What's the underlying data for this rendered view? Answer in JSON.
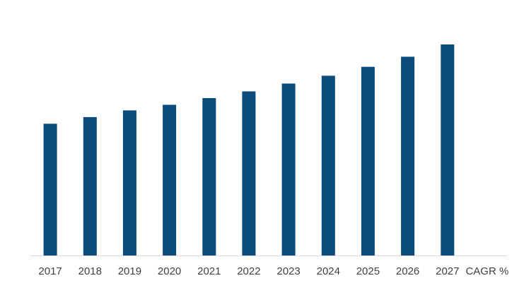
{
  "chart_data": {
    "type": "bar",
    "categories": [
      "2017",
      "2018",
      "2019",
      "2020",
      "2021",
      "2022",
      "2023",
      "2024",
      "2025",
      "2026",
      "2027",
      "CAGR %"
    ],
    "values": [
      5.9,
      6.2,
      6.5,
      6.75,
      7.05,
      7.35,
      7.7,
      8.05,
      8.45,
      8.9,
      9.45,
      null
    ],
    "ylim": [
      0,
      11
    ],
    "grid": false,
    "legend": "none",
    "title": "",
    "xlabel": "",
    "ylabel": "",
    "bar_color": "#0b4c7c",
    "axis_color": "#d9d9d9",
    "label_color": "#404040"
  }
}
